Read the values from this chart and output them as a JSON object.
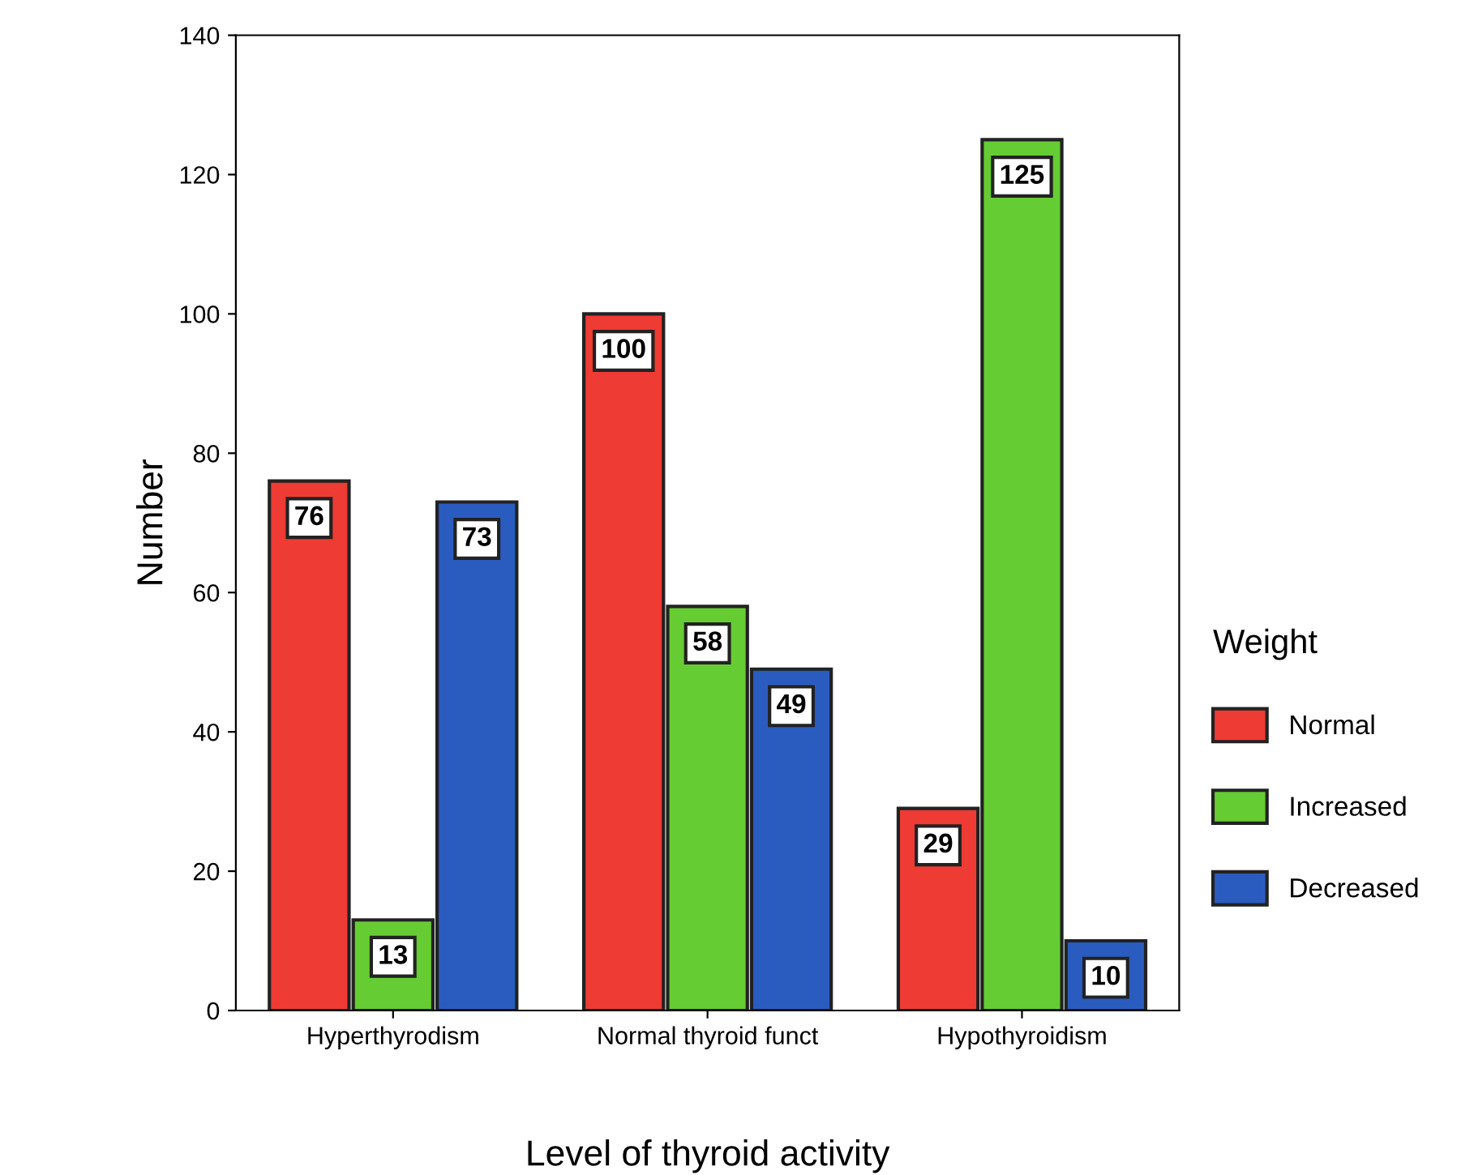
{
  "chart_data": {
    "type": "bar",
    "xlabel": "Level of thyroid activity",
    "ylabel": "Number",
    "legend_title": "Weight",
    "categories": [
      "Hyperthyrodism",
      "Normal thyroid funct",
      "Hypothyroidism"
    ],
    "series": [
      {
        "name": "Normal",
        "color": "#ee3b33",
        "values": [
          76,
          100,
          29
        ]
      },
      {
        "name": "Increased",
        "color": "#66cc33",
        "values": [
          13,
          58,
          125
        ]
      },
      {
        "name": "Decreased",
        "color": "#2a5cc0",
        "values": [
          73,
          49,
          10
        ]
      }
    ],
    "ylim": [
      0,
      140
    ],
    "yticks": [
      0,
      20,
      40,
      60,
      80,
      100,
      120,
      140
    ],
    "data_labels": true,
    "legend": "right",
    "grid": false
  }
}
